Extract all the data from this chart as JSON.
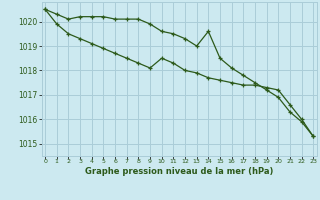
{
  "title": "Graphe pression niveau de la mer (hPa)",
  "bg_color": "#cce9f0",
  "grid_color": "#aacdd8",
  "line_color": "#2d5a1b",
  "x_ticks": [
    0,
    1,
    2,
    3,
    4,
    5,
    6,
    7,
    8,
    9,
    10,
    11,
    12,
    13,
    14,
    15,
    16,
    17,
    18,
    19,
    20,
    21,
    22,
    23
  ],
  "y_ticks": [
    1015,
    1016,
    1017,
    1018,
    1019,
    1020
  ],
  "ylim": [
    1014.5,
    1020.8
  ],
  "xlim": [
    -0.3,
    23.3
  ],
  "series1": [
    1020.5,
    1020.3,
    1020.1,
    1020.2,
    1020.2,
    1020.2,
    1020.1,
    1020.1,
    1020.1,
    1019.9,
    1019.6,
    1019.5,
    1019.3,
    1019.0,
    1019.6,
    1018.5,
    1018.1,
    1017.8,
    1017.5,
    1017.2,
    1016.9,
    1016.3,
    1015.9,
    1015.3
  ],
  "series2": [
    1020.5,
    1019.9,
    1019.5,
    1019.3,
    1019.1,
    1018.9,
    1018.7,
    1018.5,
    1018.3,
    1018.1,
    1018.5,
    1018.3,
    1018.0,
    1017.9,
    1017.7,
    1017.6,
    1017.5,
    1017.4,
    1017.4,
    1017.3,
    1017.2,
    1016.6,
    1016.0,
    1015.3
  ]
}
